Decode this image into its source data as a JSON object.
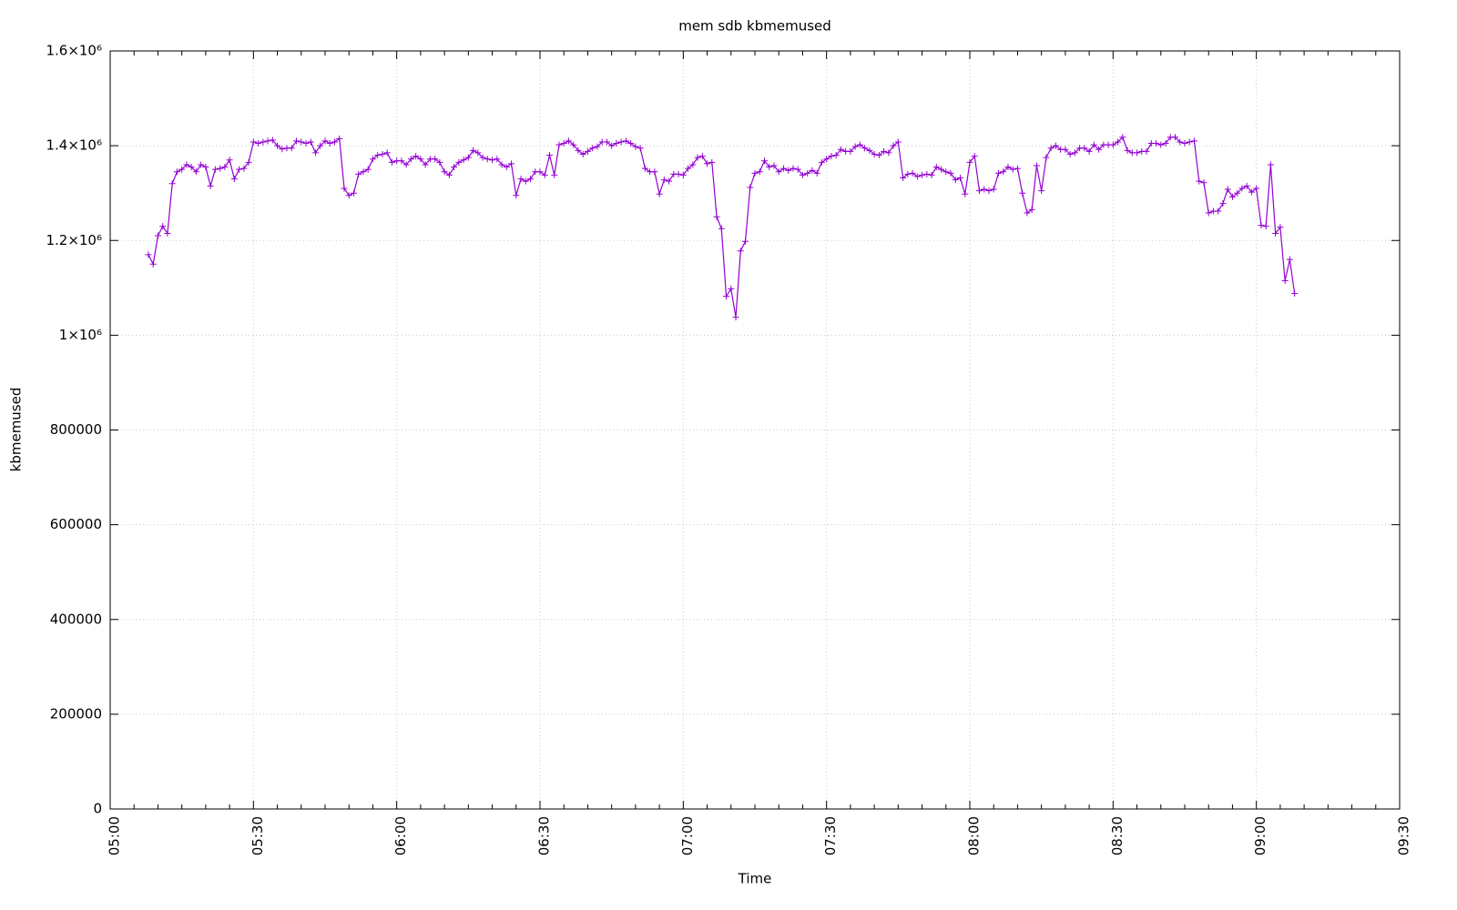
{
  "chart_data": {
    "type": "line",
    "title": "mem sdb kbmemused",
    "xlabel": "Time",
    "ylabel": "kbmemused",
    "color": "#9400d3",
    "grid": true,
    "marker": "+",
    "xlim": [
      "05:00",
      "09:30"
    ],
    "xticks": [
      "05:00",
      "05:30",
      "06:00",
      "06:30",
      "07:00",
      "07:30",
      "08:00",
      "08:30",
      "09:00",
      "09:30"
    ],
    "ylim": [
      0,
      1600000
    ],
    "yticks": [
      0,
      200000,
      400000,
      600000,
      800000,
      {
        "value": 1000000,
        "label": "1×10⁶"
      },
      {
        "value": 1200000,
        "label": "1.2×10⁶"
      },
      {
        "value": 1400000,
        "label": "1.4×10⁶"
      },
      {
        "value": 1600000,
        "label": "1.6×10⁶"
      }
    ],
    "x": [
      "05:08",
      "05:09",
      "05:10",
      "05:11",
      "05:12",
      "05:13",
      "05:14",
      "05:15",
      "05:16",
      "05:17",
      "05:18",
      "05:19",
      "05:20",
      "05:21",
      "05:22",
      "05:23",
      "05:24",
      "05:25",
      "05:26",
      "05:27",
      "05:28",
      "05:29",
      "05:30",
      "05:31",
      "05:32",
      "05:33",
      "05:34",
      "05:35",
      "05:36",
      "05:37",
      "05:38",
      "05:39",
      "05:40",
      "05:41",
      "05:42",
      "05:43",
      "05:44",
      "05:45",
      "05:46",
      "05:47",
      "05:48",
      "05:49",
      "05:50",
      "05:51",
      "05:52",
      "05:53",
      "05:54",
      "05:55",
      "05:56",
      "05:57",
      "05:58",
      "05:59",
      "06:00",
      "06:01",
      "06:02",
      "06:03",
      "06:04",
      "06:05",
      "06:06",
      "06:07",
      "06:08",
      "06:09",
      "06:10",
      "06:11",
      "06:12",
      "06:13",
      "06:14",
      "06:15",
      "06:16",
      "06:17",
      "06:18",
      "06:19",
      "06:20",
      "06:21",
      "06:22",
      "06:23",
      "06:24",
      "06:25",
      "06:26",
      "06:27",
      "06:28",
      "06:29",
      "06:30",
      "06:31",
      "06:32",
      "06:33",
      "06:34",
      "06:35",
      "06:36",
      "06:37",
      "06:38",
      "06:39",
      "06:40",
      "06:41",
      "06:42",
      "06:43",
      "06:44",
      "06:45",
      "06:46",
      "06:47",
      "06:48",
      "06:49",
      "06:50",
      "06:51",
      "06:52",
      "06:53",
      "06:54",
      "06:55",
      "06:56",
      "06:57",
      "06:58",
      "06:59",
      "07:00",
      "07:01",
      "07:02",
      "07:03",
      "07:04",
      "07:05",
      "07:06",
      "07:07",
      "07:08",
      "07:09",
      "07:10",
      "07:11",
      "07:12",
      "07:13",
      "07:14",
      "07:15",
      "07:16",
      "07:17",
      "07:18",
      "07:19",
      "07:20",
      "07:21",
      "07:22",
      "07:23",
      "07:24",
      "07:25",
      "07:26",
      "07:27",
      "07:28",
      "07:29",
      "07:30",
      "07:31",
      "07:32",
      "07:33",
      "07:34",
      "07:35",
      "07:36",
      "07:37",
      "07:38",
      "07:39",
      "07:40",
      "07:41",
      "07:42",
      "07:43",
      "07:44",
      "07:45",
      "07:46",
      "07:47",
      "07:48",
      "07:49",
      "07:50",
      "07:51",
      "07:52",
      "07:53",
      "07:54",
      "07:55",
      "07:56",
      "07:57",
      "07:58",
      "07:59",
      "08:00",
      "08:01",
      "08:02",
      "08:03",
      "08:04",
      "08:05",
      "08:06",
      "08:07",
      "08:08",
      "08:09",
      "08:10",
      "08:11",
      "08:12",
      "08:13",
      "08:14",
      "08:15",
      "08:16",
      "08:17",
      "08:18",
      "08:19",
      "08:20",
      "08:21",
      "08:22",
      "08:23",
      "08:24",
      "08:25",
      "08:26",
      "08:27",
      "08:28",
      "08:29",
      "08:30",
      "08:31",
      "08:32",
      "08:33",
      "08:34",
      "08:35",
      "08:36",
      "08:37",
      "08:38",
      "08:39",
      "08:40",
      "08:41",
      "08:42",
      "08:43",
      "08:44",
      "08:45",
      "08:46",
      "08:47",
      "08:48",
      "08:49",
      "08:50",
      "08:51",
      "08:52",
      "08:53",
      "08:54",
      "08:55",
      "08:56",
      "08:57",
      "08:58",
      "08:59",
      "09:00",
      "09:01",
      "09:02",
      "09:03",
      "09:04",
      "09:05",
      "09:06",
      "09:07",
      "09:08"
    ],
    "values": [
      1170000,
      1150000,
      1210000,
      1230000,
      1215000,
      1320000,
      1345000,
      1350000,
      1360000,
      1355000,
      1345000,
      1360000,
      1355000,
      1315000,
      1350000,
      1352000,
      1355000,
      1370000,
      1330000,
      1350000,
      1352000,
      1365000,
      1408000,
      1405000,
      1408000,
      1410000,
      1412000,
      1400000,
      1393000,
      1395000,
      1395000,
      1410000,
      1408000,
      1405000,
      1408000,
      1385000,
      1400000,
      1410000,
      1405000,
      1408000,
      1415000,
      1310000,
      1295000,
      1300000,
      1340000,
      1345000,
      1350000,
      1372000,
      1380000,
      1382000,
      1385000,
      1365000,
      1368000,
      1368000,
      1360000,
      1372000,
      1378000,
      1372000,
      1360000,
      1372000,
      1372000,
      1365000,
      1345000,
      1338000,
      1355000,
      1365000,
      1370000,
      1375000,
      1390000,
      1385000,
      1375000,
      1372000,
      1370000,
      1372000,
      1360000,
      1355000,
      1362000,
      1295000,
      1330000,
      1325000,
      1330000,
      1345000,
      1345000,
      1338000,
      1380000,
      1338000,
      1402000,
      1405000,
      1410000,
      1402000,
      1390000,
      1382000,
      1388000,
      1395000,
      1398000,
      1408000,
      1408000,
      1400000,
      1405000,
      1408000,
      1410000,
      1405000,
      1398000,
      1395000,
      1352000,
      1345000,
      1345000,
      1298000,
      1328000,
      1325000,
      1340000,
      1340000,
      1338000,
      1352000,
      1360000,
      1375000,
      1378000,
      1362000,
      1365000,
      1250000,
      1225000,
      1082000,
      1098000,
      1038000,
      1178000,
      1198000,
      1312000,
      1342000,
      1345000,
      1368000,
      1355000,
      1358000,
      1345000,
      1352000,
      1348000,
      1352000,
      1350000,
      1338000,
      1342000,
      1348000,
      1342000,
      1365000,
      1372000,
      1378000,
      1380000,
      1392000,
      1388000,
      1388000,
      1398000,
      1402000,
      1395000,
      1390000,
      1382000,
      1380000,
      1388000,
      1385000,
      1400000,
      1408000,
      1332000,
      1340000,
      1342000,
      1335000,
      1338000,
      1340000,
      1338000,
      1355000,
      1350000,
      1345000,
      1342000,
      1328000,
      1332000,
      1298000,
      1365000,
      1378000,
      1305000,
      1308000,
      1305000,
      1308000,
      1342000,
      1345000,
      1355000,
      1350000,
      1352000,
      1300000,
      1258000,
      1265000,
      1358000,
      1305000,
      1375000,
      1395000,
      1400000,
      1392000,
      1392000,
      1382000,
      1385000,
      1395000,
      1395000,
      1388000,
      1402000,
      1392000,
      1402000,
      1402000,
      1402000,
      1408000,
      1418000,
      1390000,
      1385000,
      1385000,
      1388000,
      1388000,
      1405000,
      1405000,
      1402000,
      1405000,
      1418000,
      1418000,
      1408000,
      1405000,
      1408000,
      1410000,
      1325000,
      1322000,
      1258000,
      1262000,
      1262000,
      1278000,
      1308000,
      1292000,
      1300000,
      1310000,
      1315000,
      1302000,
      1310000,
      1232000,
      1230000,
      1360000,
      1215000,
      1228000,
      1115000,
      1160000,
      1088000
    ]
  }
}
